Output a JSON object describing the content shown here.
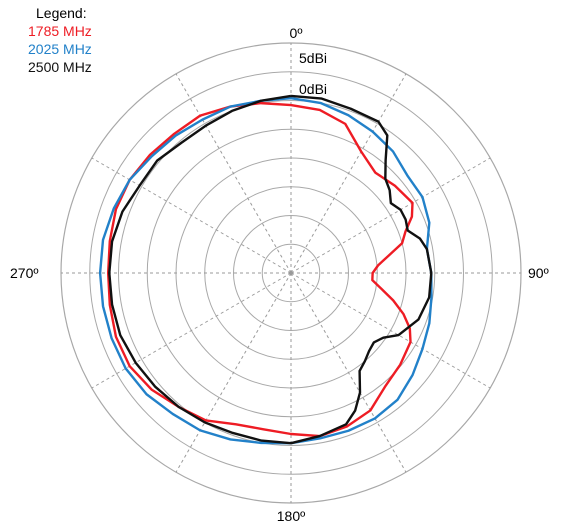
{
  "chart_data": {
    "type": "polar-line",
    "legend": {
      "title": "Legend:",
      "placement": "top-left"
    },
    "angular_ticks": [
      "0º",
      "90º",
      "180º",
      "270º"
    ],
    "radial_labels": [
      "5dBi",
      "0dBi"
    ],
    "radial_ring_count": 8,
    "spokes_every_deg": 30,
    "series": [
      {
        "name": "1785 MHz",
        "color": "#ee1c24",
        "points": [
          [
            0,
            0.73
          ],
          [
            10,
            0.72
          ],
          [
            20,
            0.69
          ],
          [
            30,
            0.61
          ],
          [
            40,
            0.57
          ],
          [
            50,
            0.59
          ],
          [
            60,
            0.61
          ],
          [
            65,
            0.58
          ],
          [
            70,
            0.53
          ],
          [
            75,
            0.5
          ],
          [
            80,
            0.43
          ],
          [
            85,
            0.38
          ],
          [
            90,
            0.355
          ],
          [
            95,
            0.355
          ],
          [
            100,
            0.4
          ],
          [
            105,
            0.46
          ],
          [
            110,
            0.52
          ],
          [
            115,
            0.57
          ],
          [
            120,
            0.6
          ],
          [
            130,
            0.62
          ],
          [
            140,
            0.64
          ],
          [
            150,
            0.69
          ],
          [
            160,
            0.71
          ],
          [
            170,
            0.72
          ],
          [
            180,
            0.7
          ],
          [
            190,
            0.69
          ],
          [
            200,
            0.7
          ],
          [
            210,
            0.74
          ],
          [
            220,
            0.76
          ],
          [
            230,
            0.79
          ],
          [
            240,
            0.81
          ],
          [
            250,
            0.81
          ],
          [
            260,
            0.8
          ],
          [
            270,
            0.795
          ],
          [
            280,
            0.8
          ],
          [
            290,
            0.81
          ],
          [
            300,
            0.81
          ],
          [
            310,
            0.8
          ],
          [
            320,
            0.79
          ],
          [
            330,
            0.79
          ],
          [
            340,
            0.77
          ],
          [
            350,
            0.75
          ],
          [
            360,
            0.73
          ]
        ]
      },
      {
        "name": "2025 MHz",
        "color": "#2281c9",
        "points": [
          [
            0,
            0.76
          ],
          [
            10,
            0.75
          ],
          [
            20,
            0.73
          ],
          [
            30,
            0.71
          ],
          [
            40,
            0.69
          ],
          [
            50,
            0.66
          ],
          [
            60,
            0.66
          ],
          [
            70,
            0.64
          ],
          [
            80,
            0.6
          ],
          [
            90,
            0.61
          ],
          [
            100,
            0.62
          ],
          [
            110,
            0.64
          ],
          [
            120,
            0.66
          ],
          [
            130,
            0.69
          ],
          [
            140,
            0.72
          ],
          [
            150,
            0.73
          ],
          [
            160,
            0.73
          ],
          [
            170,
            0.73
          ],
          [
            180,
            0.74
          ],
          [
            190,
            0.75
          ],
          [
            200,
            0.77
          ],
          [
            210,
            0.79
          ],
          [
            220,
            0.8
          ],
          [
            230,
            0.82
          ],
          [
            240,
            0.83
          ],
          [
            250,
            0.83
          ],
          [
            260,
            0.83
          ],
          [
            270,
            0.83
          ],
          [
            280,
            0.83
          ],
          [
            290,
            0.82
          ],
          [
            300,
            0.81
          ],
          [
            310,
            0.79
          ],
          [
            320,
            0.78
          ],
          [
            330,
            0.77
          ],
          [
            340,
            0.77
          ],
          [
            350,
            0.76
          ],
          [
            360,
            0.76
          ]
        ]
      },
      {
        "name": "2500 MHz",
        "color": "#111111",
        "points": [
          [
            0,
            0.77
          ],
          [
            10,
            0.77
          ],
          [
            20,
            0.76
          ],
          [
            30,
            0.76
          ],
          [
            35,
            0.73
          ],
          [
            40,
            0.64
          ],
          [
            45,
            0.58
          ],
          [
            50,
            0.56
          ],
          [
            55,
            0.53
          ],
          [
            60,
            0.55
          ],
          [
            65,
            0.55
          ],
          [
            70,
            0.54
          ],
          [
            75,
            0.58
          ],
          [
            80,
            0.6
          ],
          [
            90,
            0.61
          ],
          [
            100,
            0.61
          ],
          [
            110,
            0.59
          ],
          [
            120,
            0.54
          ],
          [
            125,
            0.49
          ],
          [
            130,
            0.47
          ],
          [
            135,
            0.48
          ],
          [
            140,
            0.5
          ],
          [
            145,
            0.52
          ],
          [
            150,
            0.6
          ],
          [
            155,
            0.66
          ],
          [
            160,
            0.7
          ],
          [
            170,
            0.72
          ],
          [
            180,
            0.74
          ],
          [
            190,
            0.74
          ],
          [
            200,
            0.74
          ],
          [
            210,
            0.75
          ],
          [
            220,
            0.76
          ],
          [
            230,
            0.77
          ],
          [
            240,
            0.78
          ],
          [
            250,
            0.79
          ],
          [
            260,
            0.79
          ],
          [
            270,
            0.79
          ],
          [
            280,
            0.79
          ],
          [
            290,
            0.78
          ],
          [
            300,
            0.76
          ],
          [
            310,
            0.76
          ],
          [
            320,
            0.74
          ],
          [
            330,
            0.74
          ],
          [
            340,
            0.75
          ],
          [
            350,
            0.76
          ],
          [
            360,
            0.77
          ]
        ]
      }
    ]
  }
}
